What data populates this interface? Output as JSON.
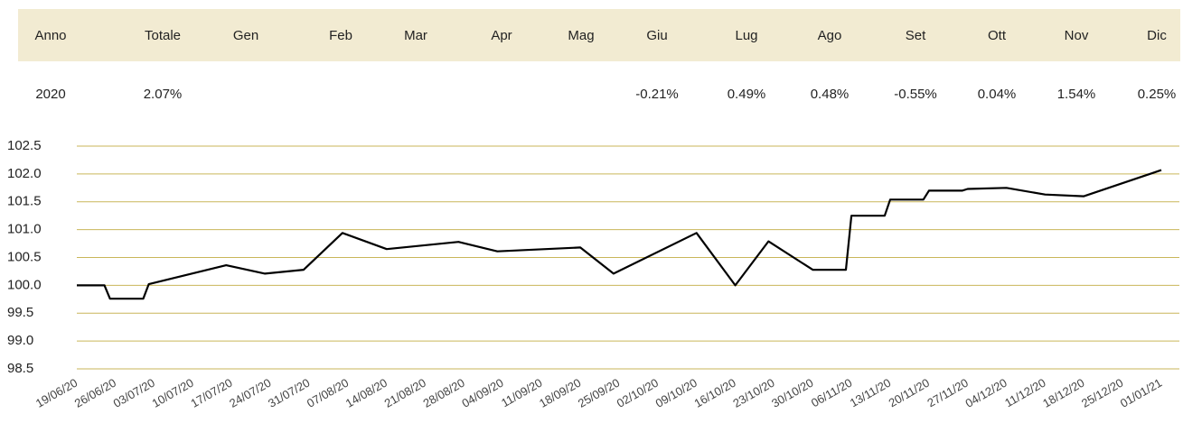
{
  "table": {
    "header": [
      "Anno",
      "Totale",
      "Gen",
      "Feb",
      "Mar",
      "Apr",
      "Mag",
      "Giu",
      "Lug",
      "Ago",
      "Set",
      "Ott",
      "Nov",
      "Dic"
    ],
    "rows": [
      [
        "2020",
        "2.07%",
        null,
        null,
        null,
        null,
        null,
        "-0.21%",
        "0.49%",
        "0.48%",
        "-0.55%",
        "0.04%",
        "1.54%",
        "0.25%"
      ]
    ]
  },
  "chart_data": {
    "type": "line",
    "color": "#000000",
    "grid": true,
    "grid_color": "#c9b65a",
    "x": [
      "19/06/20",
      "24/06/20",
      "25/06/20",
      "01/07/20",
      "02/07/20",
      "16/07/20",
      "23/07/20",
      "30/07/20",
      "06/08/20",
      "14/08/20",
      "27/08/20",
      "03/09/20",
      "18/09/20",
      "24/09/20",
      "09/10/20",
      "16/10/20",
      "22/10/20",
      "30/10/20",
      "05/11/20",
      "06/11/20",
      "12/11/20",
      "13/11/20",
      "19/11/20",
      "20/11/20",
      "26/11/20",
      "27/11/20",
      "04/12/20",
      "11/12/20",
      "18/12/20",
      "01/01/21"
    ],
    "values": [
      100.0,
      100.0,
      99.76,
      99.76,
      100.02,
      100.36,
      100.21,
      100.28,
      100.94,
      100.65,
      100.78,
      100.61,
      100.68,
      100.21,
      100.94,
      100.0,
      100.79,
      100.28,
      100.28,
      101.25,
      101.25,
      101.54,
      101.54,
      101.7,
      101.7,
      101.73,
      101.75,
      101.63,
      101.6,
      102.07
    ],
    "xlim": [
      "19/06/20",
      "01/01/21"
    ],
    "xticks": [
      "19/06/20",
      "26/06/20",
      "03/07/20",
      "10/07/20",
      "17/07/20",
      "24/07/20",
      "31/07/20",
      "07/08/20",
      "14/08/20",
      "21/08/20",
      "28/08/20",
      "04/09/20",
      "11/09/20",
      "18/09/20",
      "25/09/20",
      "02/10/20",
      "09/10/20",
      "16/10/20",
      "23/10/20",
      "30/10/20",
      "06/11/20",
      "13/11/20",
      "20/11/20",
      "27/11/20",
      "04/12/20",
      "11/12/20",
      "18/12/20",
      "25/12/20",
      "01/01/21"
    ],
    "ylim": [
      98.5,
      102.5
    ],
    "yticks": [
      98.5,
      {
        "value": 99,
        "label": "99.0"
      },
      99.5,
      {
        "value": 100,
        "label": "100.0"
      },
      100.5,
      {
        "value": 101,
        "label": "101.0"
      },
      101.5,
      {
        "value": 102,
        "label": "102.0"
      },
      102.5
    ]
  }
}
